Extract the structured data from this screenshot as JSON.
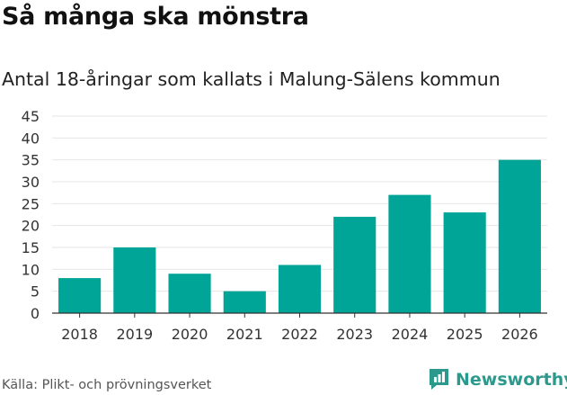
{
  "title": "Så många ska mönstra",
  "subtitle": "Antal 18-åringar som kallats i Malung-Sälens kommun",
  "source": "Källa: Plikt- och prövningsverket",
  "brand": {
    "name": "Newsworthy",
    "icon": "bar-chart-logo-icon",
    "color": "#2b9a8c"
  },
  "colors": {
    "bar": "#00a598",
    "grid": "#e6e6e6",
    "axis": "#333333",
    "tick": "#333333"
  },
  "chart_data": {
    "type": "bar",
    "title": "Så många ska mönstra",
    "subtitle": "Antal 18-åringar som kallats i Malung-Sälens kommun",
    "categories": [
      "2018",
      "2019",
      "2020",
      "2021",
      "2022",
      "2023",
      "2024",
      "2025",
      "2026"
    ],
    "values": [
      8,
      15,
      9,
      5,
      11,
      22,
      27,
      23,
      35
    ],
    "xlabel": "",
    "ylabel": "",
    "ylim": [
      0,
      45
    ],
    "yticks": [
      0,
      5,
      10,
      15,
      20,
      25,
      30,
      35,
      40,
      45
    ],
    "grid": true,
    "legend": "none"
  }
}
